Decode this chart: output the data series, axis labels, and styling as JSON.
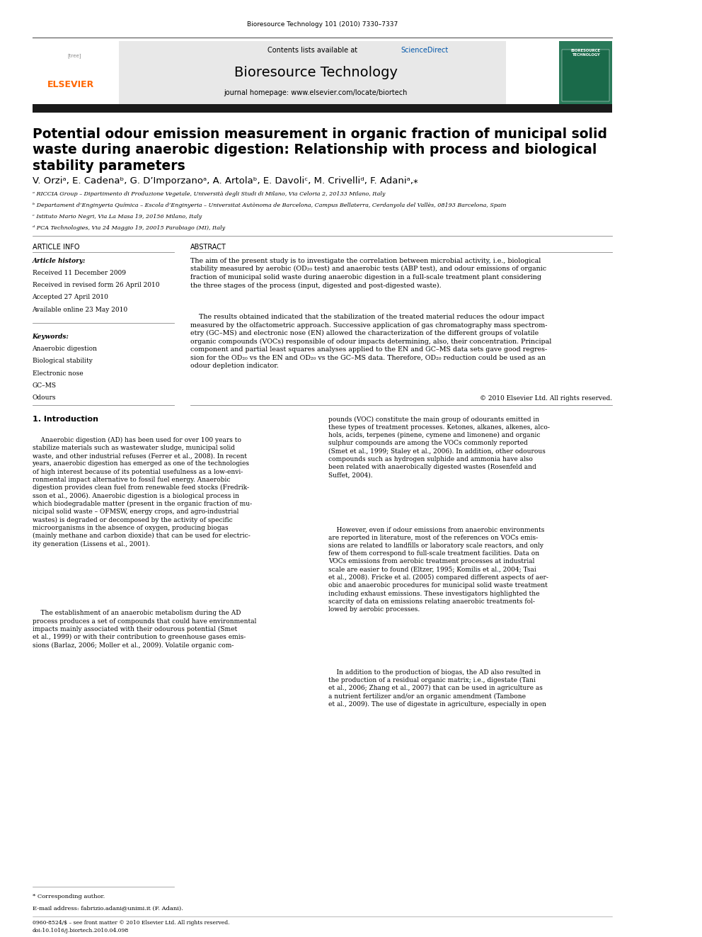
{
  "page_width": 9.92,
  "page_height": 13.23,
  "bg_color": "#ffffff",
  "journal_ref": "Bioresource Technology 101 (2010) 7330–7337",
  "header_bg": "#e8e8e8",
  "header_text1": "Contents lists available at ScienceDirect",
  "header_sciencedirect_color": "#0055aa",
  "journal_title": "Bioresource Technology",
  "journal_homepage": "journal homepage: www.elsevier.com/locate/biortech",
  "thick_bar_color": "#1a1a1a",
  "paper_title_line1": "Potential odour emission measurement in organic fraction of municipal solid",
  "paper_title_line2": "waste during anaerobic digestion: Relationship with process and biological",
  "paper_title_line3": "stability parameters",
  "authors": "V. Orziᵃ, E. Cadenaᵇ, G. D’Imporzanoᵃ, A. Artolaᵇ, E. Davoliᶜ, M. Crivelliᵈ, F. Adaniᵃ,⁎",
  "affil_a": "ᵃ RICCIA Group – Dipartimento di Produzione Vegetale, Università degli Studi di Milano, Via Celoria 2, 20133 Milano, Italy",
  "affil_b": "ᵇ Departament d’Enginyeria Química – Escola d’Enginyeria – Universitat Autònoma de Barcelona, Campus Bellaterra, Cerdanyola del Vallès, 08193 Barcelona, Spain",
  "affil_c": "ᶜ Istituto Mario Negri, Via La Masa 19, 20156 Milano, Italy",
  "affil_d": "ᵈ PCA Technologies, Via 24 Maggio 19, 20015 Parabiago (MI), Italy",
  "section_article_info": "ARTICLE INFO",
  "section_abstract": "ABSTRACT",
  "article_history_label": "Article history:",
  "received1": "Received 11 December 2009",
  "received2": "Received in revised form 26 April 2010",
  "accepted": "Accepted 27 April 2010",
  "available": "Available online 23 May 2010",
  "keywords_label": "Keywords:",
  "keyword1": "Anaerobic digestion",
  "keyword2": "Biological stability",
  "keyword3": "Electronic nose",
  "keyword4": "GC–MS",
  "keyword5": "Odours",
  "abstract_p1": "The aim of the present study is to investigate the correlation between microbial activity, i.e., biological\nstability measured by aerobic (OD₂₀ test) and anaerobic tests (ABP test), and odour emissions of organic\nfraction of municipal solid waste during anaerobic digestion in a full-scale treatment plant considering\nthe three stages of the process (input, digested and post-digested waste).",
  "abstract_p2": "    The results obtained indicated that the stabilization of the treated material reduces the odour impact\nmeasured by the olfactometric approach. Successive application of gas chromatography mass spectrom-\netry (GC–MS) and electronic nose (EN) allowed the characterization of the different groups of volatile\norganic compounds (VOCs) responsible of odour impacts determining, also, their concentration. Principal\ncomponent and partial least squares analyses applied to the EN and GC–MS data sets gave good regres-\nsion for the OD₂₀ vs the EN and OD₂₀ vs the GC–MS data. Therefore, OD₂₀ reduction could be used as an\nodour depletion indicator.",
  "copyright": "© 2010 Elsevier Ltd. All rights reserved.",
  "intro_heading": "1. Introduction",
  "intro_col1_p1": "    Anaerobic digestion (AD) has been used for over 100 years to\nstabilize materials such as wastewater sludge, municipal solid\nwaste, and other industrial refuses (Ferrer et al., 2008). In recent\nyears, anaerobic digestion has emerged as one of the technologies\nof high interest because of its potential usefulness as a low-envi-\nronmental impact alternative to fossil fuel energy. Anaerobic\ndigestion provides clean fuel from renewable feed stocks (Fredrik-\nsson et al., 2006). Anaerobic digestion is a biological process in\nwhich biodegradable matter (present in the organic fraction of mu-\nnicipal solid waste – OFMSW, energy crops, and agro-industrial\nwastes) is degraded or decomposed by the activity of specific\nmicroorganisms in the absence of oxygen, producing biogas\n(mainly methane and carbon dioxide) that can be used for electric-\nity generation (Lissens et al., 2001).",
  "intro_col1_p2": "    The establishment of an anaerobic metabolism during the AD\nprocess produces a set of compounds that could have environmental\nimpacts mainly associated with their odourous potential (Smet\net al., 1999) or with their contribution to greenhouse gases emis-\nsions (Barlaz, 2006; Moller et al., 2009). Volatile organic com-",
  "intro_col2_p1": "pounds (VOC) constitute the main group of odourants emitted in\nthese types of treatment processes. Ketones, alkanes, alkenes, alco-\nhols, acids, terpenes (pinene, cymene and limonene) and organic\nsulphur compounds are among the VOCs commonly reported\n(Smet et al., 1999; Staley et al., 2006). In addition, other odourous\ncompounds such as hydrogen sulphide and ammonia have also\nbeen related with anaerobically digested wastes (Rosenfeld and\nSuffet, 2004).",
  "intro_col2_p2": "    However, even if odour emissions from anaerobic environments\nare reported in literature, most of the references on VOCs emis-\nsions are related to landfills or laboratory scale reactors, and only\nfew of them correspond to full-scale treatment facilities. Data on\nVOCs emissions from aerobic treatment processes at industrial\nscale are easier to found (Eltzer, 1995; Komilis et al., 2004; Tsai\net al., 2008). Fricke et al. (2005) compared different aspects of aer-\nobic and anaerobic procedures for municipal solid waste treatment\nincluding exhaust emissions. These investigators highlighted the\nscarcity of data on emissions relating anaerobic treatments fol-\nlowed by aerobic processes.",
  "intro_col2_p3": "    In addition to the production of biogas, the AD also resulted in\nthe production of a residual organic matrix; i.e., digestate (Tani\net al., 2006; Zhang et al., 2007) that can be used in agriculture as\na nutrient fertilizer and/or an organic amendment (Tambone\net al., 2009). The use of digestate in agriculture, especially in open",
  "footnote_star": "* Corresponding author.",
  "footnote_email": "E-mail address: fabrizio.adani@unimi.it (F. Adani).",
  "footer_issn": "0960-8524/$ – see front matter © 2010 Elsevier Ltd. All rights reserved.",
  "footer_doi": "doi:10.1016/j.biortech.2010.04.098",
  "elsevier_color": "#ff6600",
  "link_color": "#0055aa"
}
